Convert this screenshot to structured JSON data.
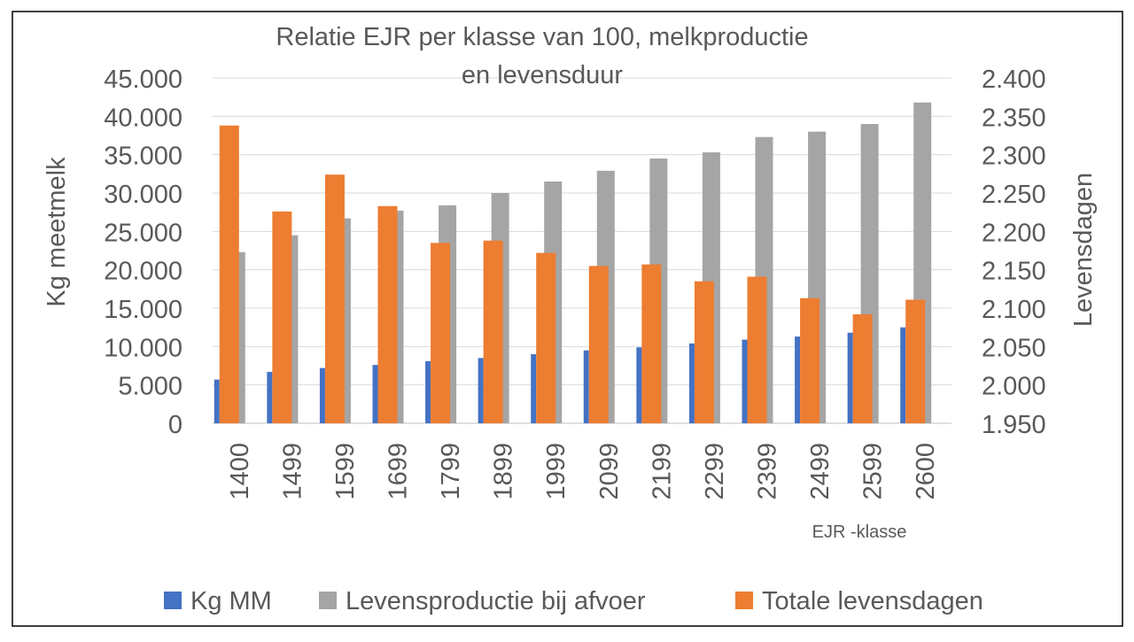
{
  "chart_data": {
    "type": "bar",
    "title": "Relatie EJR per klasse van 100, melkproductie en levensduur",
    "title_lines": [
      "Relatie EJR per klasse van 100, melkproductie",
      "en levensduur"
    ],
    "xlabel": "EJR -klasse",
    "ylabel": "Kg meetmelk",
    "y2label": "Levensdagen",
    "categories": [
      "1400",
      "1499",
      "1599",
      "1699",
      "1799",
      "1899",
      "1999",
      "2099",
      "2199",
      "2299",
      "2399",
      "2499",
      "2599",
      "2600"
    ],
    "ylim": [
      0,
      45000
    ],
    "y2lim": [
      1950,
      2400
    ],
    "yticks": [
      "0",
      "5.000",
      "10.000",
      "15.000",
      "20.000",
      "25.000",
      "30.000",
      "35.000",
      "40.000",
      "45.000"
    ],
    "y2ticks": [
      "1.950",
      "2.000",
      "2.050",
      "2.100",
      "2.150",
      "2.200",
      "2.250",
      "2.300",
      "2.350",
      "2.400"
    ],
    "series": [
      {
        "name": "Kg MM",
        "axis": "left",
        "color": "#4472C4",
        "values": [
          5700,
          6700,
          7200,
          7600,
          8100,
          8500,
          9000,
          9500,
          9900,
          10400,
          10900,
          11300,
          11800,
          12500
        ]
      },
      {
        "name": "Levensproductie bij afvoer",
        "axis": "left",
        "color": "#A5A5A5",
        "values": [
          22300,
          24500,
          26700,
          27700,
          28400,
          30000,
          31500,
          32900,
          34500,
          35300,
          37300,
          38000,
          39000,
          41800
        ]
      },
      {
        "name": "Totale levensdagen",
        "axis": "right",
        "color": "#ED7D31",
        "values": [
          2338,
          2226,
          2274,
          2233,
          2185,
          2188,
          2172,
          2155,
          2157,
          2135,
          2141,
          2113,
          2092,
          2111
        ]
      }
    ],
    "legend_position": "bottom",
    "grid": true
  }
}
